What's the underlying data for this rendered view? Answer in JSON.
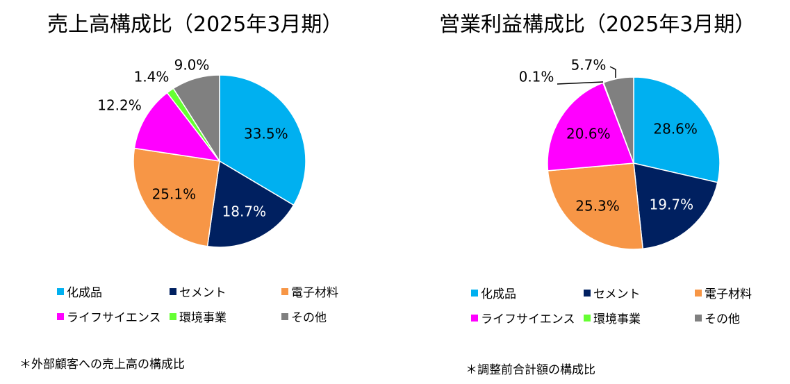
{
  "chart_data": [
    {
      "type": "pie",
      "title": "売上高構成比（2025年3月期）",
      "categories": [
        "化成品",
        "セメント",
        "電子材料",
        "ライフサイエンス",
        "環境事業",
        "その他"
      ],
      "values": [
        33.5,
        18.7,
        25.1,
        12.2,
        1.4,
        9.0
      ],
      "labels": [
        "33.5%",
        "18.7%",
        "25.1%",
        "12.2%",
        "1.4%",
        "9.0%"
      ],
      "colors": [
        "#00b0f0",
        "#002060",
        "#f79646",
        "#ff00ff",
        "#66ff33",
        "#808080"
      ],
      "legend": "bottom",
      "footnote": "＊外部顧客への売上高の構成比"
    },
    {
      "type": "pie",
      "title": "営業利益構成比（2025年3月期）",
      "categories": [
        "化成品",
        "セメント",
        "電子材料",
        "ライフサイエンス",
        "環境事業",
        "その他"
      ],
      "values": [
        28.6,
        19.7,
        25.3,
        20.6,
        0.1,
        5.7
      ],
      "labels": [
        "28.6%",
        "19.7%",
        "25.3%",
        "20.6%",
        "0.1%",
        "5.7%"
      ],
      "colors": [
        "#00b0f0",
        "#002060",
        "#f79646",
        "#ff00ff",
        "#66ff33",
        "#808080"
      ],
      "legend": "bottom",
      "footnote": "＊調整前合計額の構成比"
    }
  ]
}
